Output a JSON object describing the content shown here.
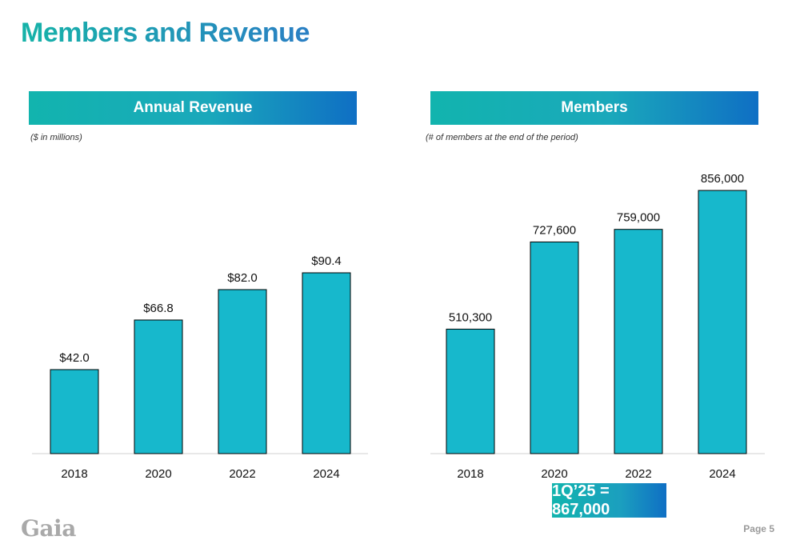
{
  "page": {
    "title": "Members and Revenue",
    "logo_text": "Gaia",
    "page_label": "Page 5",
    "badge_text": "1Q’25 = 867,000",
    "bar_color": "#17b8cc",
    "bar_stroke": "#000000"
  },
  "chart_data": [
    {
      "type": "bar",
      "title": "Annual Revenue",
      "subtitle": "($ in millions)",
      "categories": [
        "2018",
        "2020",
        "2022",
        "2024"
      ],
      "values": [
        42.0,
        66.8,
        82.0,
        90.4
      ],
      "labels": [
        "$42.0",
        "$66.8",
        "$82.0",
        "$90.4"
      ],
      "xlabel": "",
      "ylabel": "",
      "ylim": [
        0,
        100
      ]
    },
    {
      "type": "bar",
      "title": "Members",
      "subtitle": "(# of members at the end of the period)",
      "categories": [
        "2018",
        "2020",
        "2022",
        "2024"
      ],
      "values": [
        510300,
        727600,
        759000,
        856000
      ],
      "labels": [
        "510,300",
        "727,600",
        "759,000",
        "856,000"
      ],
      "xlabel": "",
      "ylabel": "",
      "ylim": [
        200000,
        900000
      ]
    }
  ]
}
